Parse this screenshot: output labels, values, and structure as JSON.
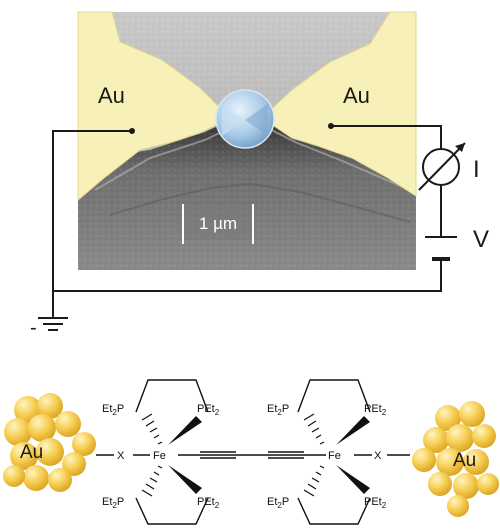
{
  "junction": {
    "left_electrode": "Au",
    "right_electrode": "Au",
    "scale_bar": "1 µm",
    "current_label": "I",
    "voltage_label": "V",
    "ground_label": "-"
  },
  "molecule": {
    "left_cluster": "Au",
    "right_cluster": "Au",
    "left_linker": "X",
    "right_linker": "X",
    "left_metal": "Fe",
    "right_metal": "Fe",
    "ligand_et2p_prefix": "Et",
    "ligand_et2p_sub": "2",
    "ligand_et2p_suffix": "P",
    "ligand_pet2_prefix": "PEt",
    "ligand_pet2_sub": "2"
  },
  "colors": {
    "gold_pad": "#f7f0b8",
    "sem_gray": "#8c8c8c",
    "sphere": "#9ec3e4",
    "gold_cluster": "#f3c948"
  }
}
